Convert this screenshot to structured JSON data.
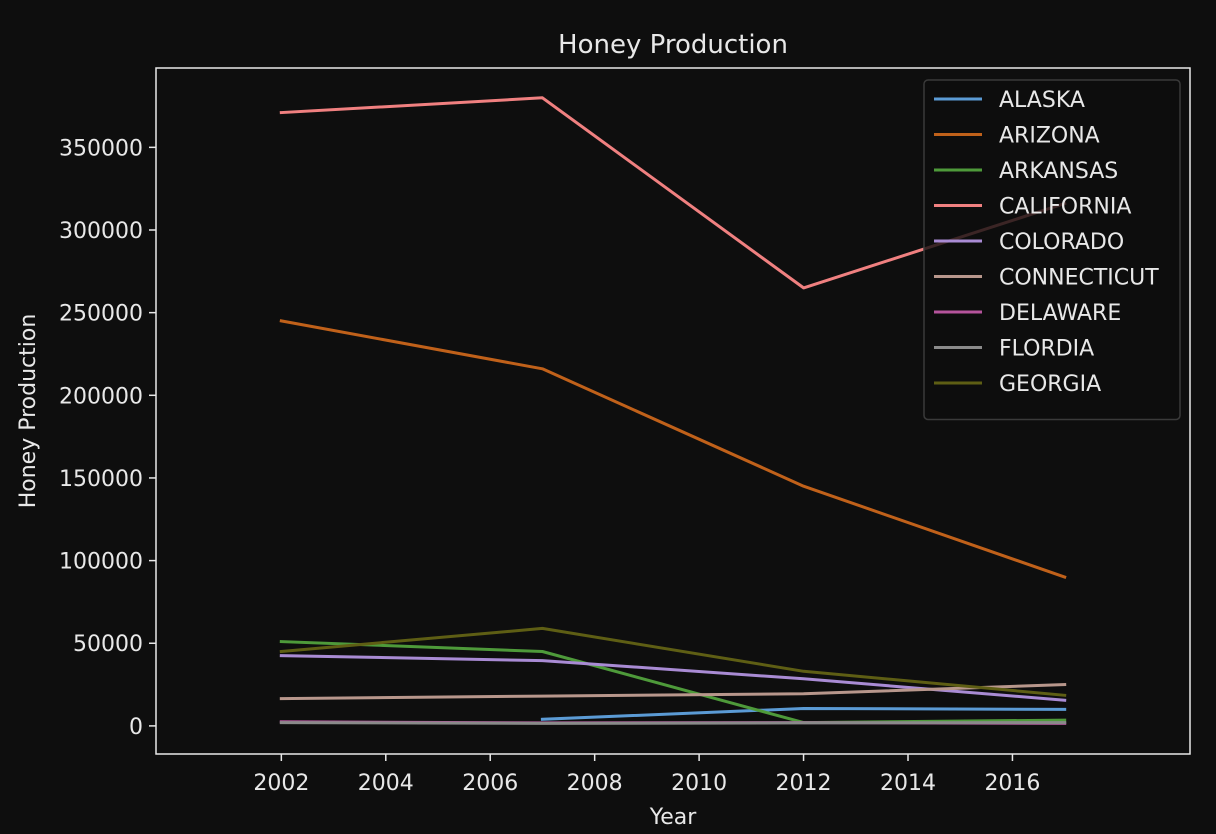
{
  "chart_data": {
    "type": "line",
    "title": "Honey Production",
    "xlabel": "Year",
    "ylabel": "Honey Production",
    "xlim": [
      1999.6,
      2019.4
    ],
    "ylim": [
      -17000,
      398000
    ],
    "xticks": [
      2002,
      2004,
      2006,
      2008,
      2010,
      2012,
      2014,
      2016
    ],
    "yticks": [
      0,
      50000,
      100000,
      150000,
      200000,
      250000,
      300000,
      350000
    ],
    "grid": false,
    "legend_position": "top-right",
    "background": "#0e0e0e",
    "series": [
      {
        "name": "ALASKA",
        "color": "#5b9bd5",
        "points": [
          [
            2007,
            4000
          ],
          [
            2012,
            10500
          ],
          [
            2017,
            10000
          ]
        ]
      },
      {
        "name": "ARIZONA",
        "color": "#c0611a",
        "points": [
          [
            2002,
            245000
          ],
          [
            2007,
            216000
          ],
          [
            2012,
            145000
          ],
          [
            2017,
            90000
          ]
        ]
      },
      {
        "name": "ARKANSAS",
        "color": "#4e9a3a",
        "points": [
          [
            2002,
            51000
          ],
          [
            2007,
            45000
          ],
          [
            2012,
            2000
          ],
          [
            2017,
            3500
          ]
        ]
      },
      {
        "name": "CALIFORNIA",
        "color": "#f08080",
        "points": [
          [
            2002,
            371000
          ],
          [
            2007,
            380000
          ],
          [
            2012,
            265000
          ],
          [
            2017,
            316000
          ]
        ]
      },
      {
        "name": "COLORADO",
        "color": "#a98bd4",
        "points": [
          [
            2002,
            42500
          ],
          [
            2007,
            39500
          ],
          [
            2012,
            28500
          ],
          [
            2017,
            15500
          ]
        ]
      },
      {
        "name": "CONNECTICUT",
        "color": "#b8978c",
        "points": [
          [
            2002,
            16500
          ],
          [
            2007,
            18000
          ],
          [
            2012,
            19500
          ],
          [
            2017,
            25000
          ]
        ]
      },
      {
        "name": "DELAWARE",
        "color": "#b5549c",
        "points": [
          [
            2002,
            2500
          ],
          [
            2007,
            1800
          ],
          [
            2012,
            2000
          ],
          [
            2017,
            1500
          ]
        ]
      },
      {
        "name": "FLORDIA",
        "color": "#8a8a8a",
        "points": [
          [
            2002,
            2000
          ],
          [
            2007,
            1500
          ],
          [
            2012,
            1800
          ],
          [
            2017,
            2000
          ]
        ]
      },
      {
        "name": "GEORGIA",
        "color": "#5e5e14",
        "points": [
          [
            2002,
            45000
          ],
          [
            2007,
            59000
          ],
          [
            2012,
            33000
          ],
          [
            2017,
            18500
          ]
        ]
      }
    ]
  }
}
